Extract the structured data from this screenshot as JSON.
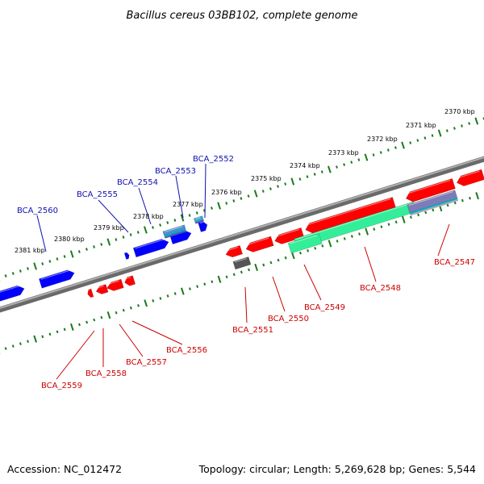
{
  "title": "Bacillus cereus 03BB102, complete genome",
  "footer": {
    "accession": "Accession: NC_012472",
    "summary": "Topology: circular; Length: 5,269,628 bp; Genes: 5,544"
  },
  "colors": {
    "forward_gene": "#0000ff",
    "reverse_gene": "#ff0000",
    "rna_gene": "#33ee99",
    "backbone": "#777777",
    "tick": "#1a7a1a",
    "forward_label": "#1010b0",
    "reverse_label": "#cc0000"
  },
  "scale_labels": [
    "2370 kbp",
    "2371 kbp",
    "2372 kbp",
    "2373 kbp",
    "2374 kbp",
    "2375 kbp",
    "2376 kbp",
    "2377 kbp",
    "2378 kbp",
    "2379 kbp",
    "2380 kbp",
    "2381 kbp"
  ],
  "forward_labels": [
    "BCA_2552",
    "BCA_2553",
    "BCA_2554",
    "BCA_2555",
    "BCA_2560"
  ],
  "reverse_labels": [
    "BCA_2547",
    "BCA_2548",
    "BCA_2549",
    "BCA_2550",
    "BCA_2551",
    "BCA_2556",
    "BCA_2557",
    "BCA_2558",
    "BCA_2559"
  ]
}
